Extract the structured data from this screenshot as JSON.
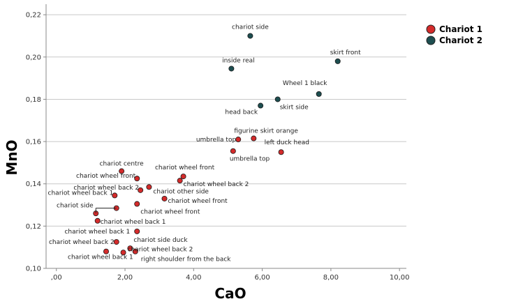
{
  "chart_data": {
    "type": "scatter",
    "title": "",
    "xlabel": "CaO",
    "ylabel": "MnO",
    "xlim": [
      -0.3,
      10.2
    ],
    "ylim": [
      0.1,
      0.225
    ],
    "x_ticks": [
      {
        "value": 0,
        "label": ",00"
      },
      {
        "value": 2,
        "label": "2,00"
      },
      {
        "value": 4,
        "label": "4,00"
      },
      {
        "value": 6,
        "label": "6,00"
      },
      {
        "value": 8,
        "label": "8,00"
      },
      {
        "value": 10,
        "label": "10,00"
      }
    ],
    "y_ticks": [
      {
        "value": 0.1,
        "label": "0,10"
      },
      {
        "value": 0.12,
        "label": "0,12"
      },
      {
        "value": 0.14,
        "label": "0,14"
      },
      {
        "value": 0.16,
        "label": "0,16"
      },
      {
        "value": 0.18,
        "label": "0,18"
      },
      {
        "value": 0.2,
        "label": "0,20"
      },
      {
        "value": 0.22,
        "label": "0,22"
      }
    ],
    "grid": "horizontal",
    "legend_position": "top-right",
    "series": [
      {
        "name": "Chariot 1",
        "color": "#d42b2b",
        "points": [
          {
            "x": 1.9,
            "y": 0.146,
            "label": "chariot centre"
          },
          {
            "x": 2.35,
            "y": 0.1425,
            "label": "chariot wheel front"
          },
          {
            "x": 2.45,
            "y": 0.137,
            "label": "chariot wheel back 2"
          },
          {
            "x": 1.7,
            "y": 0.1345,
            "label": "chariot wheel back 1"
          },
          {
            "x": 1.75,
            "y": 0.1285,
            "label": "chariot side"
          },
          {
            "x": 1.15,
            "y": 0.126,
            "label": ""
          },
          {
            "x": 1.2,
            "y": 0.1225,
            "label": "chariot wheel back 1"
          },
          {
            "x": 2.35,
            "y": 0.1305,
            "label": "chariot wheel front"
          },
          {
            "x": 2.7,
            "y": 0.1385,
            "label": "chariot other side"
          },
          {
            "x": 3.15,
            "y": 0.133,
            "label": "chariot wheel front"
          },
          {
            "x": 3.7,
            "y": 0.1435,
            "label": "chariot wheel front"
          },
          {
            "x": 3.6,
            "y": 0.1415,
            "label": "chariot wheel back 2"
          },
          {
            "x": 5.3,
            "y": 0.161,
            "label": "umbrella top"
          },
          {
            "x": 5.75,
            "y": 0.1615,
            "label": "figurine skirt orange"
          },
          {
            "x": 6.55,
            "y": 0.155,
            "label": "left duck head"
          },
          {
            "x": 5.15,
            "y": 0.1555,
            "label": "umbrella top"
          },
          {
            "x": 2.35,
            "y": 0.1175,
            "label": "chariot wheel back 1"
          },
          {
            "x": 1.75,
            "y": 0.1125,
            "label": "chariot wheel back 2"
          },
          {
            "x": 2.15,
            "y": 0.1095,
            "label": "chariot side duck"
          },
          {
            "x": 1.95,
            "y": 0.1075,
            "label": "chariot wheel back 2"
          },
          {
            "x": 1.45,
            "y": 0.108,
            "label": "chariot wheel back 1"
          },
          {
            "x": 2.3,
            "y": 0.108,
            "label": "right shoulder from the back"
          }
        ]
      },
      {
        "name": "Chariot 2",
        "color": "#1d4e50",
        "points": [
          {
            "x": 5.65,
            "y": 0.21,
            "label": "chariot side"
          },
          {
            "x": 5.1,
            "y": 0.1945,
            "label": "inside real"
          },
          {
            "x": 8.2,
            "y": 0.198,
            "label": "skirt front"
          },
          {
            "x": 7.65,
            "y": 0.1825,
            "label": "Wheel 1 black"
          },
          {
            "x": 6.45,
            "y": 0.18,
            "label": "skirt side"
          },
          {
            "x": 5.95,
            "y": 0.177,
            "label": "head back"
          }
        ]
      }
    ]
  }
}
